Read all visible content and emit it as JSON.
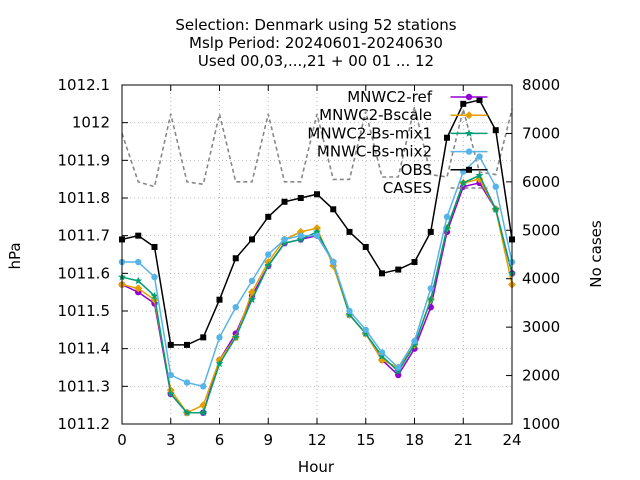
{
  "chart_data": {
    "type": "line",
    "title_lines": [
      "Selection: Denmark using    52 stations",
      "Mslp   Period: 20240601-20240630",
      "Used 00,03,...,21 + 00 01 ... 12"
    ],
    "xlabel": "Hour",
    "ylabel": "hPa",
    "y2label": "No cases",
    "xlim": [
      0,
      24
    ],
    "ylim": [
      1011.2,
      1012.1
    ],
    "y2lim": [
      1000,
      8000
    ],
    "xticks": [
      0,
      3,
      6,
      9,
      12,
      15,
      18,
      21,
      24
    ],
    "yticks": [
      1011.2,
      1011.3,
      1011.4,
      1011.5,
      1011.6,
      1011.7,
      1011.8,
      1011.9,
      1012,
      1012.1
    ],
    "ytick_labels": [
      "1011.2",
      "1011.3",
      "1011.4",
      "1011.5",
      "1011.6",
      "1011.7",
      "1011.8",
      "1011.9",
      "1012",
      "1012.1"
    ],
    "y2ticks": [
      1000,
      2000,
      3000,
      4000,
      5000,
      6000,
      7000,
      8000
    ],
    "legend_position": "top-right",
    "x": [
      0,
      1,
      2,
      3,
      4,
      5,
      6,
      7,
      8,
      9,
      10,
      11,
      12,
      13,
      14,
      15,
      16,
      17,
      18,
      19,
      20,
      21,
      22,
      23,
      24
    ],
    "series": [
      {
        "name": "MNWC2-ref",
        "color": "#9400d3",
        "marker": "circle",
        "axis": "y",
        "values": [
          1011.57,
          1011.55,
          1011.52,
          1011.28,
          1011.23,
          1011.23,
          1011.37,
          1011.44,
          1011.54,
          1011.62,
          1011.68,
          1011.69,
          1011.7,
          1011.63,
          1011.49,
          1011.44,
          1011.37,
          1011.33,
          1011.4,
          1011.51,
          1011.71,
          1011.83,
          1011.84,
          1011.77,
          1011.6
        ]
      },
      {
        "name": "MNWC2-Bscale",
        "color": "#e69f00",
        "marker": "diamond",
        "axis": "y",
        "values": [
          1011.57,
          1011.56,
          1011.53,
          1011.29,
          1011.23,
          1011.25,
          1011.37,
          1011.43,
          1011.55,
          1011.63,
          1011.69,
          1011.71,
          1011.72,
          1011.62,
          1011.49,
          1011.44,
          1011.37,
          1011.35,
          1011.41,
          1011.53,
          1011.72,
          1011.84,
          1011.85,
          1011.77,
          1011.57
        ]
      },
      {
        "name": "MNWC2-Bs-mix1",
        "color": "#009e73",
        "marker": "star",
        "axis": "y",
        "values": [
          1011.59,
          1011.58,
          1011.54,
          1011.28,
          1011.23,
          1011.23,
          1011.36,
          1011.43,
          1011.53,
          1011.62,
          1011.68,
          1011.69,
          1011.71,
          1011.63,
          1011.49,
          1011.44,
          1011.38,
          1011.34,
          1011.41,
          1011.53,
          1011.72,
          1011.84,
          1011.86,
          1011.77,
          1011.6
        ]
      },
      {
        "name": "MNWC-Bs-mix2",
        "color": "#56b4e9",
        "marker": "circle",
        "axis": "y",
        "values": [
          1011.63,
          1011.63,
          1011.59,
          1011.33,
          1011.31,
          1011.3,
          1011.43,
          1011.51,
          1011.58,
          1011.65,
          1011.69,
          1011.7,
          1011.7,
          1011.63,
          1011.5,
          1011.45,
          1011.39,
          1011.35,
          1011.42,
          1011.56,
          1011.75,
          1011.87,
          1011.91,
          1011.83,
          1011.63
        ]
      },
      {
        "name": "OBS",
        "color": "#000000",
        "marker": "square",
        "axis": "y",
        "values": [
          1011.69,
          1011.7,
          1011.67,
          1011.41,
          1011.41,
          1011.43,
          1011.53,
          1011.64,
          1011.69,
          1011.75,
          1011.79,
          1011.8,
          1011.81,
          1011.77,
          1011.71,
          1011.67,
          1011.6,
          1011.61,
          1011.63,
          1011.71,
          1011.96,
          1012.05,
          1012.06,
          1011.98,
          1011.69
        ]
      },
      {
        "name": "CASES",
        "color": "#888888",
        "marker": "none",
        "dashed": true,
        "axis": "y2",
        "values": [
          7000,
          6000,
          5900,
          7400,
          6000,
          5950,
          7400,
          6000,
          6000,
          7400,
          6000,
          6000,
          7400,
          6050,
          6050,
          7450,
          6100,
          6100,
          7550,
          6150,
          6100,
          7500,
          6200,
          6150,
          7500
        ]
      }
    ]
  }
}
